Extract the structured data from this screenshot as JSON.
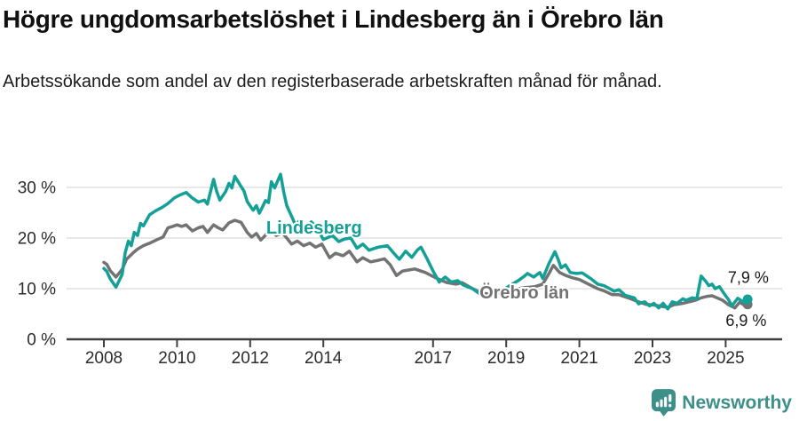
{
  "header": {
    "title": "Högre ungdomsarbetslöshet i Lindesberg än i Örebro län",
    "subtitle": "Arbetssökande som andel av den registerbaserade arbetskraften månad för månad."
  },
  "footer": {
    "brand": "Newsworthy",
    "logo_icon": "newsworthy-chart-bubble-icon"
  },
  "colors": {
    "lindesberg": "#14a096",
    "orebro": "#737373",
    "grid": "#d9d9d9",
    "axis": "#3f3f3f",
    "tick_text": "#2b2b2b",
    "value_label": "#1a1a1a",
    "logo": "#3d9089"
  },
  "chart_data": {
    "type": "line",
    "title": "Högre ungdomsarbetslöshet i Lindesberg än i Örebro län",
    "subtitle": "Arbetssökande som andel av den registerbaserade arbetskraften månad för månad.",
    "xlabel": "",
    "ylabel": "",
    "xlim": [
      2007.5,
      2026.4
    ],
    "ylim": [
      0,
      34
    ],
    "grid": "horizontal",
    "legend_position": "inline-labels",
    "y_ticks": [
      {
        "value": 0,
        "label": "0 %"
      },
      {
        "value": 10,
        "label": "10 %"
      },
      {
        "value": 20,
        "label": "20 %"
      },
      {
        "value": 30,
        "label": "30 %"
      }
    ],
    "x_ticks": [
      {
        "value": 2008,
        "label": "2008"
      },
      {
        "value": 2010,
        "label": "2010"
      },
      {
        "value": 2012,
        "label": "2012"
      },
      {
        "value": 2014,
        "label": "2014"
      },
      {
        "value": 2017,
        "label": "2017"
      },
      {
        "value": 2019,
        "label": "2019"
      },
      {
        "value": 2021,
        "label": "2021"
      },
      {
        "value": 2023,
        "label": "2023"
      },
      {
        "value": 2025,
        "label": "2025"
      }
    ],
    "series": [
      {
        "id": "orebro-lan",
        "name": "Örebro län",
        "color": "#737373",
        "end_value_label": "6,9 %",
        "points": [
          [
            2008.0,
            15.2
          ],
          [
            2008.08,
            14.8
          ],
          [
            2008.17,
            13.6
          ],
          [
            2008.33,
            12.3
          ],
          [
            2008.5,
            13.8
          ],
          [
            2008.62,
            15.8
          ],
          [
            2008.79,
            17.0
          ],
          [
            2008.92,
            17.8
          ],
          [
            2009.08,
            18.5
          ],
          [
            2009.29,
            19.1
          ],
          [
            2009.46,
            19.7
          ],
          [
            2009.62,
            20.2
          ],
          [
            2009.75,
            22.0
          ],
          [
            2009.88,
            22.3
          ],
          [
            2010.0,
            22.6
          ],
          [
            2010.13,
            22.3
          ],
          [
            2010.25,
            22.6
          ],
          [
            2010.42,
            21.4
          ],
          [
            2010.58,
            22.0
          ],
          [
            2010.71,
            22.3
          ],
          [
            2010.83,
            21.1
          ],
          [
            2011.0,
            22.6
          ],
          [
            2011.13,
            22.0
          ],
          [
            2011.25,
            21.6
          ],
          [
            2011.42,
            23.0
          ],
          [
            2011.58,
            23.5
          ],
          [
            2011.75,
            23.1
          ],
          [
            2011.92,
            21.1
          ],
          [
            2012.04,
            20.2
          ],
          [
            2012.17,
            20.9
          ],
          [
            2012.29,
            19.6
          ],
          [
            2012.46,
            20.9
          ],
          [
            2012.58,
            21.4
          ],
          [
            2012.71,
            20.5
          ],
          [
            2012.88,
            21.0
          ],
          [
            2013.0,
            20.0
          ],
          [
            2013.13,
            18.8
          ],
          [
            2013.29,
            19.4
          ],
          [
            2013.46,
            18.5
          ],
          [
            2013.63,
            19.0
          ],
          [
            2013.79,
            18.2
          ],
          [
            2013.96,
            18.8
          ],
          [
            2014.17,
            16.1
          ],
          [
            2014.33,
            17.0
          ],
          [
            2014.54,
            16.5
          ],
          [
            2014.71,
            17.4
          ],
          [
            2014.92,
            15.3
          ],
          [
            2015.08,
            16.1
          ],
          [
            2015.29,
            15.3
          ],
          [
            2015.5,
            15.6
          ],
          [
            2015.67,
            15.9
          ],
          [
            2015.83,
            14.7
          ],
          [
            2016.0,
            12.6
          ],
          [
            2016.17,
            13.5
          ],
          [
            2016.5,
            13.9
          ],
          [
            2016.79,
            13.2
          ],
          [
            2017.08,
            12.1
          ],
          [
            2017.38,
            11.2
          ],
          [
            2017.63,
            10.9
          ],
          [
            2017.79,
            11.2
          ],
          [
            2018.08,
            10.0
          ],
          [
            2018.33,
            9.1
          ],
          [
            2018.58,
            8.9
          ],
          [
            2018.88,
            9.3
          ],
          [
            2019.17,
            9.8
          ],
          [
            2019.5,
            10.2
          ],
          [
            2019.79,
            10.4
          ],
          [
            2020.0,
            10.9
          ],
          [
            2020.17,
            13.0
          ],
          [
            2020.29,
            14.6
          ],
          [
            2020.46,
            13.2
          ],
          [
            2020.63,
            12.6
          ],
          [
            2020.83,
            12.1
          ],
          [
            2021.0,
            11.8
          ],
          [
            2021.25,
            10.9
          ],
          [
            2021.5,
            10.0
          ],
          [
            2021.7,
            9.5
          ],
          [
            2021.9,
            8.8
          ],
          [
            2022.08,
            8.8
          ],
          [
            2022.33,
            8.2
          ],
          [
            2022.58,
            7.5
          ],
          [
            2022.83,
            6.9
          ],
          [
            2023.0,
            6.8
          ],
          [
            2023.25,
            6.5
          ],
          [
            2023.42,
            6.3
          ],
          [
            2023.58,
            6.8
          ],
          [
            2023.83,
            7.1
          ],
          [
            2024.0,
            7.4
          ],
          [
            2024.17,
            7.7
          ],
          [
            2024.33,
            8.2
          ],
          [
            2024.5,
            8.5
          ],
          [
            2024.63,
            8.6
          ],
          [
            2024.79,
            8.1
          ],
          [
            2024.92,
            7.7
          ],
          [
            2025.08,
            6.8
          ],
          [
            2025.25,
            6.2
          ],
          [
            2025.38,
            7.3
          ],
          [
            2025.5,
            6.8
          ],
          [
            2025.6,
            6.9
          ]
        ]
      },
      {
        "id": "lindesberg",
        "name": "Lindesberg",
        "color": "#14a096",
        "end_value_label": "7,9 %",
        "points": [
          [
            2008.0,
            14.0
          ],
          [
            2008.08,
            13.4
          ],
          [
            2008.17,
            12.0
          ],
          [
            2008.33,
            10.3
          ],
          [
            2008.5,
            12.8
          ],
          [
            2008.58,
            17.0
          ],
          [
            2008.67,
            19.4
          ],
          [
            2008.75,
            18.5
          ],
          [
            2008.83,
            21.1
          ],
          [
            2008.92,
            20.5
          ],
          [
            2009.0,
            22.9
          ],
          [
            2009.08,
            22.4
          ],
          [
            2009.25,
            24.6
          ],
          [
            2009.42,
            25.4
          ],
          [
            2009.58,
            26.0
          ],
          [
            2009.75,
            26.8
          ],
          [
            2009.92,
            27.9
          ],
          [
            2010.08,
            28.5
          ],
          [
            2010.25,
            29.0
          ],
          [
            2010.42,
            27.9
          ],
          [
            2010.58,
            27.1
          ],
          [
            2010.75,
            27.5
          ],
          [
            2010.83,
            26.7
          ],
          [
            2011.0,
            31.6
          ],
          [
            2011.08,
            29.3
          ],
          [
            2011.17,
            27.5
          ],
          [
            2011.33,
            29.2
          ],
          [
            2011.42,
            30.8
          ],
          [
            2011.5,
            29.9
          ],
          [
            2011.58,
            32.2
          ],
          [
            2011.75,
            30.2
          ],
          [
            2011.83,
            29.3
          ],
          [
            2011.92,
            27.2
          ],
          [
            2012.08,
            25.5
          ],
          [
            2012.17,
            26.4
          ],
          [
            2012.25,
            24.9
          ],
          [
            2012.42,
            27.4
          ],
          [
            2012.5,
            27.0
          ],
          [
            2012.58,
            31.1
          ],
          [
            2012.67,
            29.9
          ],
          [
            2012.83,
            32.6
          ],
          [
            2012.92,
            29.0
          ],
          [
            2013.0,
            26.4
          ],
          [
            2013.17,
            23.7
          ],
          [
            2013.25,
            22.3
          ],
          [
            2013.33,
            23.3
          ],
          [
            2013.5,
            21.2
          ],
          [
            2013.67,
            23.2
          ],
          [
            2013.83,
            22.0
          ],
          [
            2014.0,
            19.7
          ],
          [
            2014.25,
            20.5
          ],
          [
            2014.42,
            19.3
          ],
          [
            2014.58,
            19.8
          ],
          [
            2014.75,
            20.0
          ],
          [
            2014.92,
            18.0
          ],
          [
            2015.08,
            18.8
          ],
          [
            2015.25,
            17.6
          ],
          [
            2015.5,
            18.2
          ],
          [
            2015.75,
            18.5
          ],
          [
            2016.0,
            16.4
          ],
          [
            2016.08,
            15.8
          ],
          [
            2016.25,
            17.4
          ],
          [
            2016.42,
            16.2
          ],
          [
            2016.58,
            17.7
          ],
          [
            2016.67,
            18.2
          ],
          [
            2016.83,
            16.0
          ],
          [
            2017.0,
            13.5
          ],
          [
            2017.17,
            11.3
          ],
          [
            2017.33,
            12.3
          ],
          [
            2017.5,
            11.3
          ],
          [
            2017.67,
            11.6
          ],
          [
            2017.83,
            10.7
          ],
          [
            2018.08,
            10.0
          ],
          [
            2018.25,
            9.1
          ],
          [
            2018.42,
            8.6
          ],
          [
            2018.58,
            8.9
          ],
          [
            2018.83,
            9.4
          ],
          [
            2019.08,
            10.5
          ],
          [
            2019.33,
            11.6
          ],
          [
            2019.5,
            12.5
          ],
          [
            2019.58,
            13.0
          ],
          [
            2019.75,
            12.3
          ],
          [
            2019.92,
            13.2
          ],
          [
            2020.0,
            12.0
          ],
          [
            2020.17,
            15.0
          ],
          [
            2020.33,
            17.3
          ],
          [
            2020.42,
            15.8
          ],
          [
            2020.5,
            14.1
          ],
          [
            2020.62,
            14.7
          ],
          [
            2020.75,
            13.2
          ],
          [
            2020.92,
            13.0
          ],
          [
            2021.08,
            13.1
          ],
          [
            2021.33,
            11.9
          ],
          [
            2021.5,
            10.9
          ],
          [
            2021.67,
            10.6
          ],
          [
            2021.83,
            10.0
          ],
          [
            2021.95,
            9.5
          ],
          [
            2022.08,
            9.8
          ],
          [
            2022.25,
            8.7
          ],
          [
            2022.5,
            8.2
          ],
          [
            2022.62,
            7.0
          ],
          [
            2022.79,
            7.4
          ],
          [
            2022.92,
            6.6
          ],
          [
            2023.04,
            7.1
          ],
          [
            2023.17,
            6.2
          ],
          [
            2023.29,
            7.1
          ],
          [
            2023.42,
            6.0
          ],
          [
            2023.54,
            7.4
          ],
          [
            2023.67,
            7.1
          ],
          [
            2023.83,
            8.0
          ],
          [
            2023.92,
            7.7
          ],
          [
            2024.08,
            8.2
          ],
          [
            2024.21,
            8.0
          ],
          [
            2024.33,
            12.5
          ],
          [
            2024.46,
            11.4
          ],
          [
            2024.54,
            10.6
          ],
          [
            2024.63,
            10.9
          ],
          [
            2024.71,
            10.0
          ],
          [
            2024.83,
            10.4
          ],
          [
            2024.92,
            9.4
          ],
          [
            2025.08,
            7.8
          ],
          [
            2025.17,
            6.6
          ],
          [
            2025.33,
            8.1
          ],
          [
            2025.46,
            7.5
          ],
          [
            2025.54,
            7.2
          ],
          [
            2025.6,
            7.9
          ]
        ]
      }
    ],
    "annotations": [
      {
        "id": "label-lindesberg",
        "text": "Lindesberg",
        "x": 2012.44,
        "y": 20.9,
        "color": "#14a096",
        "bold": true,
        "size": 20,
        "halo": true
      },
      {
        "id": "label-orebro-lan",
        "text": "Örebro län",
        "x": 2018.27,
        "y": 8.1,
        "color": "#737373",
        "bold": true,
        "size": 20,
        "halo": true
      },
      {
        "id": "end-value-lindesberg",
        "text": "7,9 %",
        "x": 2025.06,
        "y": 11.1,
        "color": "#1a1a1a",
        "bold": false,
        "size": 18,
        "halo": true
      },
      {
        "id": "end-value-orebro-lan",
        "text": "6,9 %",
        "x": 2025.0,
        "y": 2.6,
        "color": "#1a1a1a",
        "bold": false,
        "size": 18,
        "halo": true
      }
    ]
  }
}
